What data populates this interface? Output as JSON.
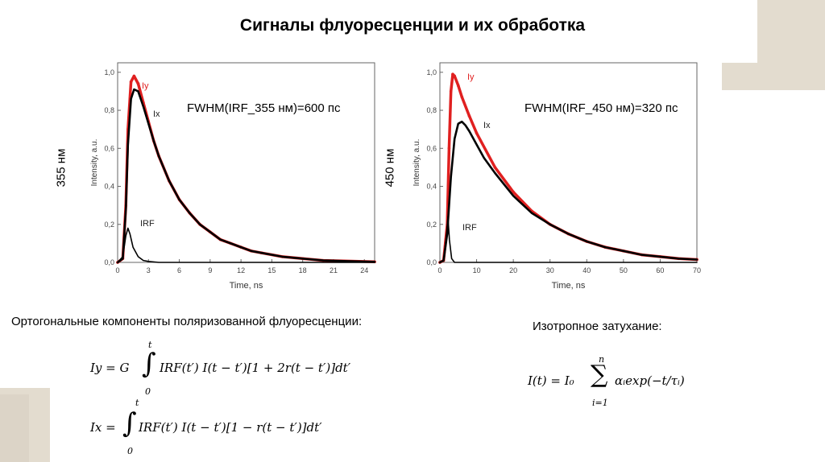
{
  "title": "Сигналы флуоресценции и их обработка",
  "left_panel": {
    "side_label": "355 нм",
    "fwhm": "FWHM(IRF_355 нм)=600 пс"
  },
  "right_panel": {
    "side_label": "450 нм",
    "fwhm": "FWHM(IRF_450 нм)=320 пс"
  },
  "ortho_label": "Ортогональные компоненты поляризованной флуоресценции:",
  "iso_label": "Изотропное затухание:",
  "formulas": {
    "iy": {
      "lhs": "Iy = G",
      "upper": "t",
      "lower": "0",
      "rhs": "IRF(t′) I(t − t′)[1 + 2r(t − t′)]dt′"
    },
    "ix": {
      "lhs": "Ix =",
      "upper": "t",
      "lower": "0",
      "rhs": "IRF(t′) I(t − t′)[1 − r(t − t′)]dt′"
    },
    "iso": {
      "lhs": "I(t) = I₀",
      "sum_upper": "n",
      "sum_lower": "i=1",
      "rhs": "αᵢexp(−t/τᵢ)"
    }
  },
  "colors": {
    "iy": "#e02020",
    "ix": "#000000",
    "irf": "#000000",
    "decor": "#e0d9cc"
  },
  "chart_data": [
    {
      "type": "line",
      "xlabel": "Time, ns",
      "ylabel": "Intensity, a.u.",
      "xlim": [
        0,
        25
      ],
      "ylim": [
        0,
        1.05
      ],
      "xticks": [
        "0",
        "3",
        "6",
        "9",
        "12",
        "15",
        "18",
        "21",
        "24"
      ],
      "yticks": [
        "0,0",
        "0,2",
        "0,4",
        "0,6",
        "0,8",
        "1,0"
      ],
      "series": [
        {
          "name": "Iy",
          "x": [
            0,
            0.5,
            0.8,
            1.0,
            1.3,
            1.6,
            2,
            2.5,
            3,
            3.5,
            4,
            5,
            6,
            7,
            8,
            9,
            10,
            11,
            12,
            13,
            14,
            16,
            18,
            20,
            22,
            25
          ],
          "values": [
            0,
            0.02,
            0.3,
            0.7,
            0.95,
            0.98,
            0.94,
            0.84,
            0.74,
            0.64,
            0.56,
            0.43,
            0.33,
            0.26,
            0.2,
            0.16,
            0.12,
            0.1,
            0.08,
            0.06,
            0.05,
            0.03,
            0.02,
            0.01,
            0.007,
            0.003
          ]
        },
        {
          "name": "Ix",
          "x": [
            0,
            0.5,
            0.8,
            1.0,
            1.3,
            1.6,
            2,
            2.5,
            3,
            3.5,
            4,
            5,
            6,
            7,
            8,
            9,
            10,
            11,
            12,
            13,
            14,
            16,
            18,
            20,
            22,
            25
          ],
          "values": [
            0,
            0.02,
            0.28,
            0.62,
            0.86,
            0.91,
            0.9,
            0.82,
            0.73,
            0.64,
            0.56,
            0.43,
            0.33,
            0.26,
            0.2,
            0.16,
            0.12,
            0.1,
            0.08,
            0.06,
            0.05,
            0.03,
            0.02,
            0.01,
            0.007,
            0.003
          ]
        },
        {
          "name": "IRF",
          "x": [
            0,
            0.5,
            0.8,
            1.0,
            1.2,
            1.5,
            2,
            2.5,
            3,
            4,
            25
          ],
          "values": [
            0,
            0.03,
            0.14,
            0.18,
            0.15,
            0.08,
            0.03,
            0.01,
            0.005,
            0,
            0
          ]
        }
      ],
      "annotations": [
        "Iy",
        "Ix",
        "IRF"
      ]
    },
    {
      "type": "line",
      "xlabel": "Time, ns",
      "ylabel": "Intensity, a.u.",
      "xlim": [
        0,
        70
      ],
      "ylim": [
        0,
        1.05
      ],
      "xticks": [
        "0",
        "10",
        "20",
        "30",
        "40",
        "50",
        "60",
        "70"
      ],
      "yticks": [
        "0,0",
        "0,2",
        "0,4",
        "0,6",
        "0,8",
        "1,0"
      ],
      "series": [
        {
          "name": "Iy",
          "x": [
            0,
            1,
            2,
            2.5,
            3,
            3.5,
            4,
            5,
            6,
            8,
            10,
            15,
            20,
            25,
            30,
            35,
            40,
            45,
            50,
            55,
            60,
            65,
            70
          ],
          "values": [
            0,
            0.01,
            0.2,
            0.6,
            0.9,
            0.99,
            0.98,
            0.93,
            0.87,
            0.77,
            0.68,
            0.5,
            0.37,
            0.27,
            0.2,
            0.15,
            0.11,
            0.08,
            0.06,
            0.04,
            0.03,
            0.02,
            0.015
          ]
        },
        {
          "name": "Ix",
          "x": [
            0,
            1,
            2,
            3,
            4,
            5,
            6,
            7,
            8,
            10,
            12,
            15,
            20,
            25,
            30,
            35,
            40,
            45,
            50,
            55,
            60,
            65,
            70
          ],
          "values": [
            0,
            0.01,
            0.15,
            0.45,
            0.65,
            0.73,
            0.74,
            0.72,
            0.69,
            0.62,
            0.55,
            0.47,
            0.35,
            0.26,
            0.2,
            0.15,
            0.11,
            0.08,
            0.06,
            0.04,
            0.03,
            0.02,
            0.015
          ]
        },
        {
          "name": "IRF",
          "x": [
            0,
            1,
            1.8,
            2.2,
            2.6,
            3.2,
            4,
            70
          ],
          "values": [
            0,
            0.01,
            0.15,
            0.24,
            0.12,
            0.02,
            0,
            0
          ]
        }
      ],
      "annotations": [
        "Iy",
        "Ix",
        "IRF"
      ]
    }
  ]
}
